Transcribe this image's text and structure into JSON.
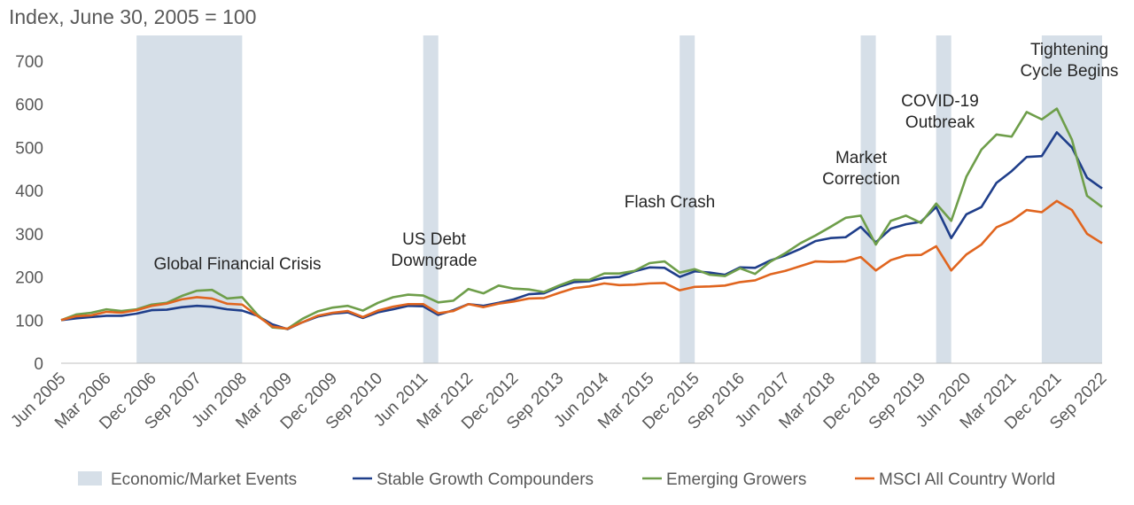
{
  "chart_data": {
    "type": "line",
    "title": "Index, June 30, 2005 = 100",
    "xlabel": "",
    "ylabel": "",
    "ylim": [
      0,
      700
    ],
    "yticks": [
      0,
      100,
      200,
      300,
      400,
      500,
      600,
      700
    ],
    "grid": false,
    "legend_position": "bottom",
    "x_tick_labels": [
      "Jun 2005",
      "Mar 2006",
      "Dec 2006",
      "Sep 2007",
      "Jun 2008",
      "Mar 2009",
      "Dec 2009",
      "Sep 2010",
      "Jun 2011",
      "Mar 2012",
      "Dec 2012",
      "Sep 2013",
      "Jun 2014",
      "Mar 2015",
      "Dec 2015",
      "Sep 2016",
      "Jun 2017",
      "Mar 2018",
      "Dec 2018",
      "Sep 2019",
      "Jun 2020",
      "Mar 2021",
      "Dec 2021",
      "Sep 2022"
    ],
    "x": [
      "Jun 2005",
      "Sep 2005",
      "Dec 2005",
      "Mar 2006",
      "Jun 2006",
      "Sep 2006",
      "Dec 2006",
      "Mar 2007",
      "Jun 2007",
      "Sep 2007",
      "Dec 2007",
      "Mar 2008",
      "Jun 2008",
      "Sep 2008",
      "Dec 2008",
      "Mar 2009",
      "Jun 2009",
      "Sep 2009",
      "Dec 2009",
      "Mar 2010",
      "Jun 2010",
      "Sep 2010",
      "Dec 2010",
      "Mar 2011",
      "Jun 2011",
      "Sep 2011",
      "Dec 2011",
      "Mar 2012",
      "Jun 2012",
      "Sep 2012",
      "Dec 2012",
      "Mar 2013",
      "Jun 2013",
      "Sep 2013",
      "Dec 2013",
      "Mar 2014",
      "Jun 2014",
      "Sep 2014",
      "Dec 2014",
      "Mar 2015",
      "Jun 2015",
      "Sep 2015",
      "Dec 2015",
      "Mar 2016",
      "Jun 2016",
      "Sep 2016",
      "Dec 2016",
      "Mar 2017",
      "Jun 2017",
      "Sep 2017",
      "Dec 2017",
      "Mar 2018",
      "Jun 2018",
      "Sep 2018",
      "Dec 2018",
      "Mar 2019",
      "Jun 2019",
      "Sep 2019",
      "Dec 2019",
      "Mar 2020",
      "Jun 2020",
      "Sep 2020",
      "Dec 2020",
      "Mar 2021",
      "Jun 2021",
      "Sep 2021",
      "Dec 2021",
      "Mar 2022",
      "Jun 2022",
      "Sep 2022"
    ],
    "series": [
      {
        "name": "Stable Growth Compounders",
        "color": "#1f3e8a",
        "values": [
          100,
          104,
          107,
          110,
          110,
          115,
          123,
          124,
          130,
          133,
          131,
          125,
          122,
          110,
          90,
          79,
          95,
          108,
          115,
          118,
          105,
          118,
          125,
          133,
          132,
          112,
          123,
          137,
          133,
          140,
          148,
          160,
          162,
          177,
          188,
          190,
          198,
          200,
          213,
          222,
          221,
          200,
          213,
          210,
          205,
          222,
          221,
          238,
          250,
          265,
          283,
          290,
          292,
          316,
          280,
          312,
          322,
          328,
          362,
          290,
          345,
          362,
          418,
          445,
          478,
          480,
          535,
          500,
          430,
          405
        ]
      },
      {
        "name": "Emerging Growers",
        "color": "#6e9e4a",
        "values": [
          100,
          113,
          117,
          125,
          121,
          125,
          136,
          140,
          156,
          168,
          170,
          150,
          153,
          113,
          83,
          80,
          103,
          120,
          129,
          133,
          122,
          140,
          153,
          159,
          157,
          141,
          145,
          172,
          162,
          180,
          173,
          171,
          165,
          180,
          193,
          193,
          208,
          208,
          214,
          232,
          236,
          210,
          218,
          205,
          202,
          220,
          207,
          235,
          255,
          278,
          296,
          316,
          337,
          342,
          275,
          330,
          342,
          325,
          370,
          330,
          432,
          495,
          530,
          525,
          582,
          565,
          590,
          518,
          388,
          362
        ]
      },
      {
        "name": "MSCI All Country World",
        "color": "#e0651f",
        "values": [
          100,
          109,
          111,
          119,
          117,
          123,
          133,
          138,
          148,
          153,
          150,
          138,
          136,
          110,
          85,
          80,
          95,
          110,
          117,
          121,
          107,
          122,
          131,
          137,
          137,
          116,
          121,
          137,
          130,
          138,
          143,
          150,
          151,
          163,
          174,
          178,
          185,
          181,
          182,
          185,
          186,
          169,
          177,
          178,
          180,
          188,
          192,
          206,
          214,
          225,
          236,
          235,
          236,
          246,
          215,
          239,
          250,
          251,
          271,
          215,
          252,
          275,
          315,
          330,
          355,
          350,
          376,
          355,
          300,
          278
        ]
      }
    ],
    "event_bands_legend": "Economic/Market Events",
    "event_bands_color": "#d6dfe8",
    "events": [
      {
        "start": "Sep 2006",
        "end": "Jun 2008",
        "label_lines": [
          "Global Financial Crisis"
        ]
      },
      {
        "start": "Jun 2011",
        "end": "Sep 2011",
        "label_lines": [
          "US Debt",
          "Downgrade"
        ]
      },
      {
        "start": "Sep 2015",
        "end": "Dec 2015",
        "label_lines": [
          "Flash Crash"
        ]
      },
      {
        "start": "Sep 2018",
        "end": "Dec 2018",
        "label_lines": [
          "Market",
          "Correction"
        ]
      },
      {
        "start": "Dec 2019",
        "end": "Mar 2020",
        "label_lines": [
          "COVID-19",
          "Outbreak"
        ]
      },
      {
        "start": "Sep 2021",
        "end": "Sep 2022",
        "label_lines": [
          "Tightening",
          "Cycle Begins"
        ]
      }
    ]
  }
}
